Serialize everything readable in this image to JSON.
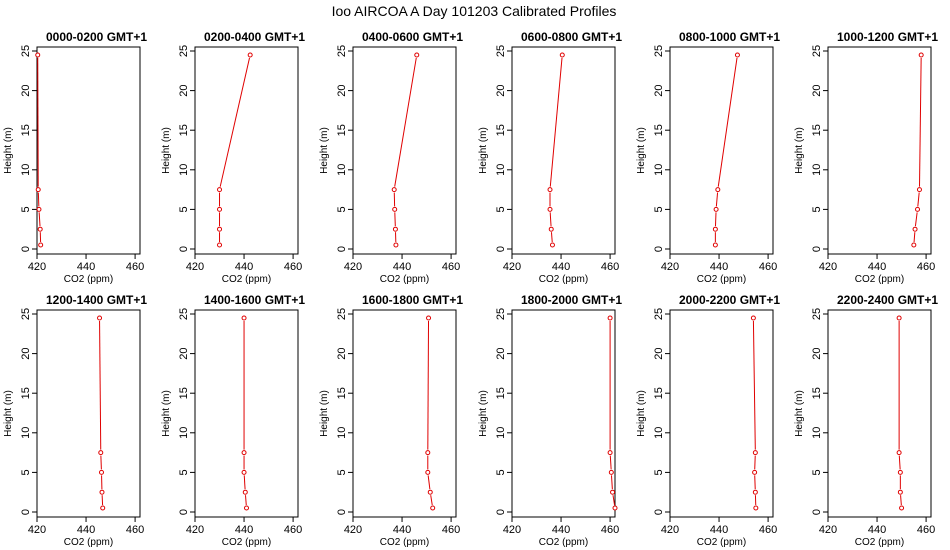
{
  "title": "Ioo AIRCOA A  Day 101203  Calibrated Profiles",
  "chart_data": [
    {
      "type": "line",
      "title": "0000-0200 GMT+1",
      "xlabel": "CO2 (ppm)",
      "ylabel": "Height (m)",
      "xlim": [
        420,
        462
      ],
      "ylim": [
        0,
        25
      ],
      "xticks": [
        420,
        440,
        460
      ],
      "yticks": [
        0,
        5,
        10,
        15,
        20,
        25
      ],
      "line_color": "#e00000",
      "series": [
        {
          "x": [
            421.5,
            421.3,
            420.8,
            420.5,
            420.3
          ],
          "y": [
            0.5,
            2.5,
            5,
            7.5,
            24.5
          ]
        }
      ]
    },
    {
      "type": "line",
      "title": "0200-0400 GMT+1",
      "xlabel": "CO2 (ppm)",
      "ylabel": "Height (m)",
      "xlim": [
        420,
        462
      ],
      "ylim": [
        0,
        25
      ],
      "xticks": [
        420,
        440,
        460
      ],
      "yticks": [
        0,
        5,
        10,
        15,
        20,
        25
      ],
      "line_color": "#e00000",
      "series": [
        {
          "x": [
            430.0,
            430.0,
            430.0,
            430.0,
            442.5
          ],
          "y": [
            0.5,
            2.5,
            5,
            7.5,
            24.5
          ]
        }
      ]
    },
    {
      "type": "line",
      "title": "0400-0600 GMT+1",
      "xlabel": "CO2 (ppm)",
      "ylabel": "Height (m)",
      "xlim": [
        420,
        462
      ],
      "ylim": [
        0,
        25
      ],
      "xticks": [
        420,
        440,
        460
      ],
      "yticks": [
        0,
        5,
        10,
        15,
        20,
        25
      ],
      "line_color": "#e00000",
      "series": [
        {
          "x": [
            437.5,
            437.3,
            437.0,
            436.8,
            446.0
          ],
          "y": [
            0.5,
            2.5,
            5,
            7.5,
            24.5
          ]
        }
      ]
    },
    {
      "type": "line",
      "title": "0600-0800 GMT+1",
      "xlabel": "CO2 (ppm)",
      "ylabel": "Height (m)",
      "xlim": [
        420,
        462
      ],
      "ylim": [
        0,
        25
      ],
      "xticks": [
        420,
        440,
        460
      ],
      "yticks": [
        0,
        5,
        10,
        15,
        20,
        25
      ],
      "line_color": "#e00000",
      "series": [
        {
          "x": [
            436.5,
            436.0,
            435.5,
            435.5,
            440.5
          ],
          "y": [
            0.5,
            2.5,
            5,
            7.5,
            24.5
          ]
        }
      ]
    },
    {
      "type": "line",
      "title": "0800-1000 GMT+1",
      "xlabel": "CO2 (ppm)",
      "ylabel": "Height (m)",
      "xlim": [
        420,
        462
      ],
      "ylim": [
        0,
        25
      ],
      "xticks": [
        420,
        440,
        460
      ],
      "yticks": [
        0,
        5,
        10,
        15,
        20,
        25
      ],
      "line_color": "#e00000",
      "series": [
        {
          "x": [
            438.5,
            438.5,
            438.8,
            439.5,
            447.5
          ],
          "y": [
            0.5,
            2.5,
            5,
            7.5,
            24.5
          ]
        }
      ]
    },
    {
      "type": "line",
      "title": "1000-1200 GMT+1",
      "xlabel": "CO2 (ppm)",
      "ylabel": "Height (m)",
      "xlim": [
        420,
        462
      ],
      "ylim": [
        0,
        25
      ],
      "xticks": [
        420,
        440,
        460
      ],
      "yticks": [
        0,
        5,
        10,
        15,
        20,
        25
      ],
      "line_color": "#e00000",
      "series": [
        {
          "x": [
            455.0,
            455.5,
            456.5,
            457.3,
            458.0
          ],
          "y": [
            0.5,
            2.5,
            5,
            7.5,
            24.5
          ]
        }
      ]
    },
    {
      "type": "line",
      "title": "1200-1400 GMT+1",
      "xlabel": "CO2 (ppm)",
      "ylabel": "Height (m)",
      "xlim": [
        420,
        462
      ],
      "ylim": [
        0,
        25
      ],
      "xticks": [
        420,
        440,
        460
      ],
      "yticks": [
        0,
        5,
        10,
        15,
        20,
        25
      ],
      "line_color": "#e00000",
      "series": [
        {
          "x": [
            446.8,
            446.5,
            446.3,
            446.0,
            445.5
          ],
          "y": [
            0.5,
            2.5,
            5,
            7.5,
            24.5
          ]
        }
      ]
    },
    {
      "type": "line",
      "title": "1400-1600 GMT+1",
      "xlabel": "CO2 (ppm)",
      "ylabel": "Height (m)",
      "xlim": [
        420,
        462
      ],
      "ylim": [
        0,
        25
      ],
      "xticks": [
        420,
        440,
        460
      ],
      "yticks": [
        0,
        5,
        10,
        15,
        20,
        25
      ],
      "line_color": "#e00000",
      "series": [
        {
          "x": [
            441.0,
            440.5,
            440.0,
            440.0,
            440.0
          ],
          "y": [
            0.5,
            2.5,
            5,
            7.5,
            24.5
          ]
        }
      ]
    },
    {
      "type": "line",
      "title": "1600-1800 GMT+1",
      "xlabel": "CO2 (ppm)",
      "ylabel": "Height (m)",
      "xlim": [
        420,
        462
      ],
      "ylim": [
        0,
        25
      ],
      "xticks": [
        420,
        440,
        460
      ],
      "yticks": [
        0,
        5,
        10,
        15,
        20,
        25
      ],
      "line_color": "#e00000",
      "series": [
        {
          "x": [
            452.5,
            451.5,
            450.5,
            450.5,
            450.8
          ],
          "y": [
            0.5,
            2.5,
            5,
            7.5,
            24.5
          ]
        }
      ]
    },
    {
      "type": "line",
      "title": "1800-2000 GMT+1",
      "xlabel": "CO2 (ppm)",
      "ylabel": "Height (m)",
      "xlim": [
        420,
        462
      ],
      "ylim": [
        0,
        25
      ],
      "xticks": [
        420,
        440,
        460
      ],
      "yticks": [
        0,
        5,
        10,
        15,
        20,
        25
      ],
      "line_color": "#e00000",
      "series": [
        {
          "x": [
            462.0,
            461.0,
            460.5,
            460.0,
            460.0
          ],
          "y": [
            0.5,
            2.5,
            5,
            7.5,
            24.5
          ]
        }
      ]
    },
    {
      "type": "line",
      "title": "2000-2200 GMT+1",
      "xlabel": "CO2 (ppm)",
      "ylabel": "Height (m)",
      "xlim": [
        420,
        462
      ],
      "ylim": [
        0,
        25
      ],
      "xticks": [
        420,
        440,
        460
      ],
      "yticks": [
        0,
        5,
        10,
        15,
        20,
        25
      ],
      "line_color": "#e00000",
      "series": [
        {
          "x": [
            455.0,
            454.8,
            454.5,
            454.8,
            454.0
          ],
          "y": [
            0.5,
            2.5,
            5,
            7.5,
            24.5
          ]
        }
      ]
    },
    {
      "type": "line",
      "title": "2200-2400 GMT+1",
      "xlabel": "CO2 (ppm)",
      "ylabel": "Height (m)",
      "xlim": [
        420,
        462
      ],
      "ylim": [
        0,
        25
      ],
      "xticks": [
        420,
        440,
        460
      ],
      "yticks": [
        0,
        5,
        10,
        15,
        20,
        25
      ],
      "line_color": "#e00000",
      "series": [
        {
          "x": [
            450.0,
            449.5,
            449.5,
            449.0,
            449.0
          ],
          "y": [
            0.5,
            2.5,
            5,
            7.5,
            24.5
          ]
        }
      ]
    }
  ]
}
